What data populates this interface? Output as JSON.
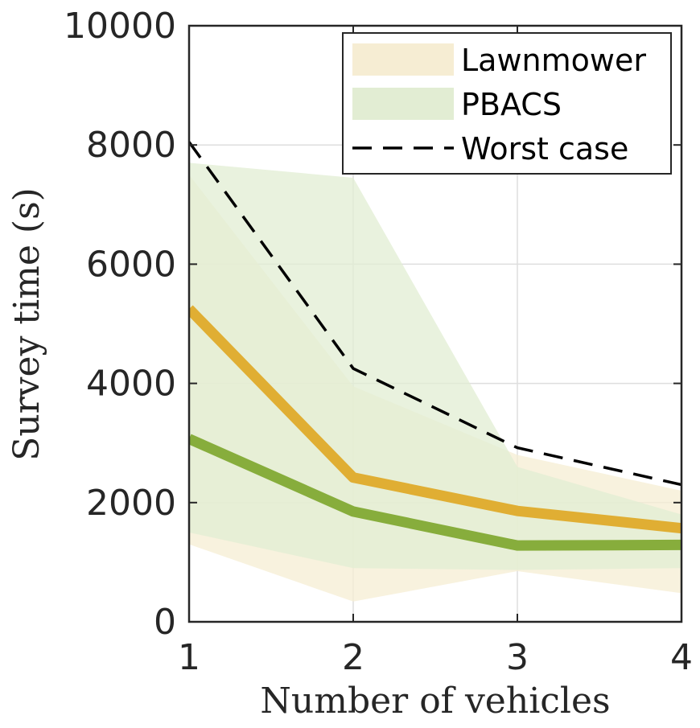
{
  "chart_data": {
    "type": "line",
    "title": "",
    "xlabel": "Number of vehicles",
    "ylabel": "Survey time (s)",
    "x": [
      1,
      2,
      3,
      4
    ],
    "xlim": [
      1,
      4
    ],
    "ylim": [
      0,
      10000
    ],
    "xticks": [
      1,
      2,
      3,
      4
    ],
    "yticks": [
      0,
      2000,
      4000,
      6000,
      8000,
      10000
    ],
    "xtick_labels": [
      "1",
      "2",
      "3",
      "4"
    ],
    "ytick_labels": [
      "0",
      "2000",
      "4000",
      "6000",
      "8000",
      "10000"
    ],
    "grid": true,
    "legend_position": "top-right",
    "series": [
      {
        "name": "Lawnmower",
        "kind": "mean-with-range",
        "mean": [
          5250,
          2420,
          1860,
          1570
        ],
        "upper": [
          7500,
          3950,
          2800,
          2200
        ],
        "lower": [
          1300,
          340,
          850,
          480
        ],
        "line_color": "#E0AE33",
        "fill_color": "#F6EDD3"
      },
      {
        "name": "PBACS",
        "kind": "mean-with-range",
        "mean": [
          3070,
          1850,
          1280,
          1290
        ],
        "upper": [
          7700,
          7450,
          2600,
          1800
        ],
        "lower": [
          1500,
          900,
          870,
          900
        ],
        "line_color": "#87AD3C",
        "fill_color": "#E2EDD3"
      },
      {
        "name": "Worst case",
        "kind": "dashed-line",
        "values": [
          8050,
          4250,
          2920,
          2300
        ],
        "line_color": "#000000"
      }
    ]
  }
}
